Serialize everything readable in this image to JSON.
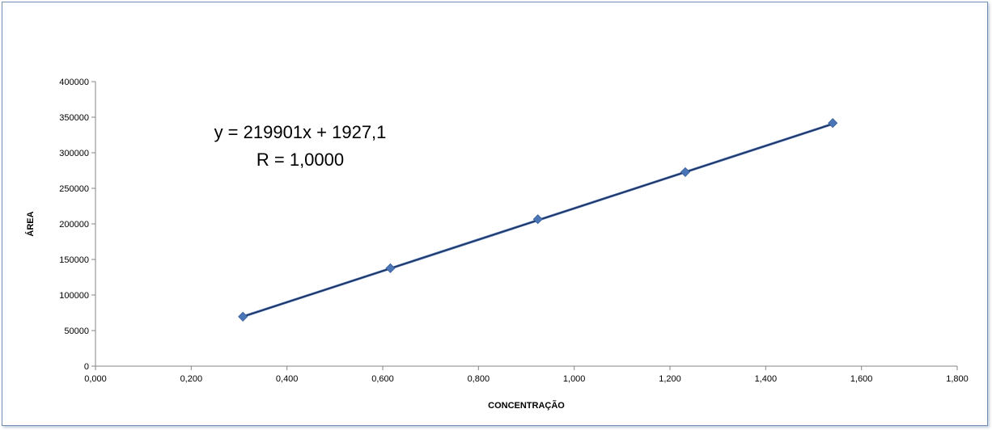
{
  "chart_data": {
    "type": "scatter",
    "title": "",
    "xlabel": "CONCENTRAÇÃO",
    "ylabel": "ÁREA",
    "xlim": [
      0,
      1.8
    ],
    "ylim": [
      0,
      400000
    ],
    "x_ticks": [
      "0,000",
      "0,200",
      "0,400",
      "0,600",
      "0,800",
      "1,000",
      "1,200",
      "1,400",
      "1,600",
      "1,800"
    ],
    "y_ticks": [
      "0",
      "50000",
      "100000",
      "150000",
      "200000",
      "250000",
      "300000",
      "350000",
      "400000"
    ],
    "series": [
      {
        "x": [
          0.308,
          0.616,
          0.924,
          1.232,
          1.54
        ],
        "y": [
          69600,
          137700,
          206600,
          272800,
          341800
        ],
        "marker": "diamond",
        "color": "#4a76b8"
      }
    ],
    "trendline": {
      "slope": 219901,
      "intercept": 1927.1,
      "color": "#1f2f5a",
      "x_range": [
        0.308,
        1.54
      ]
    },
    "annotations": {
      "equation": "y = 219901x + 1927,1",
      "r_value": "R = 1,0000"
    },
    "grid": false,
    "legend": "none"
  }
}
